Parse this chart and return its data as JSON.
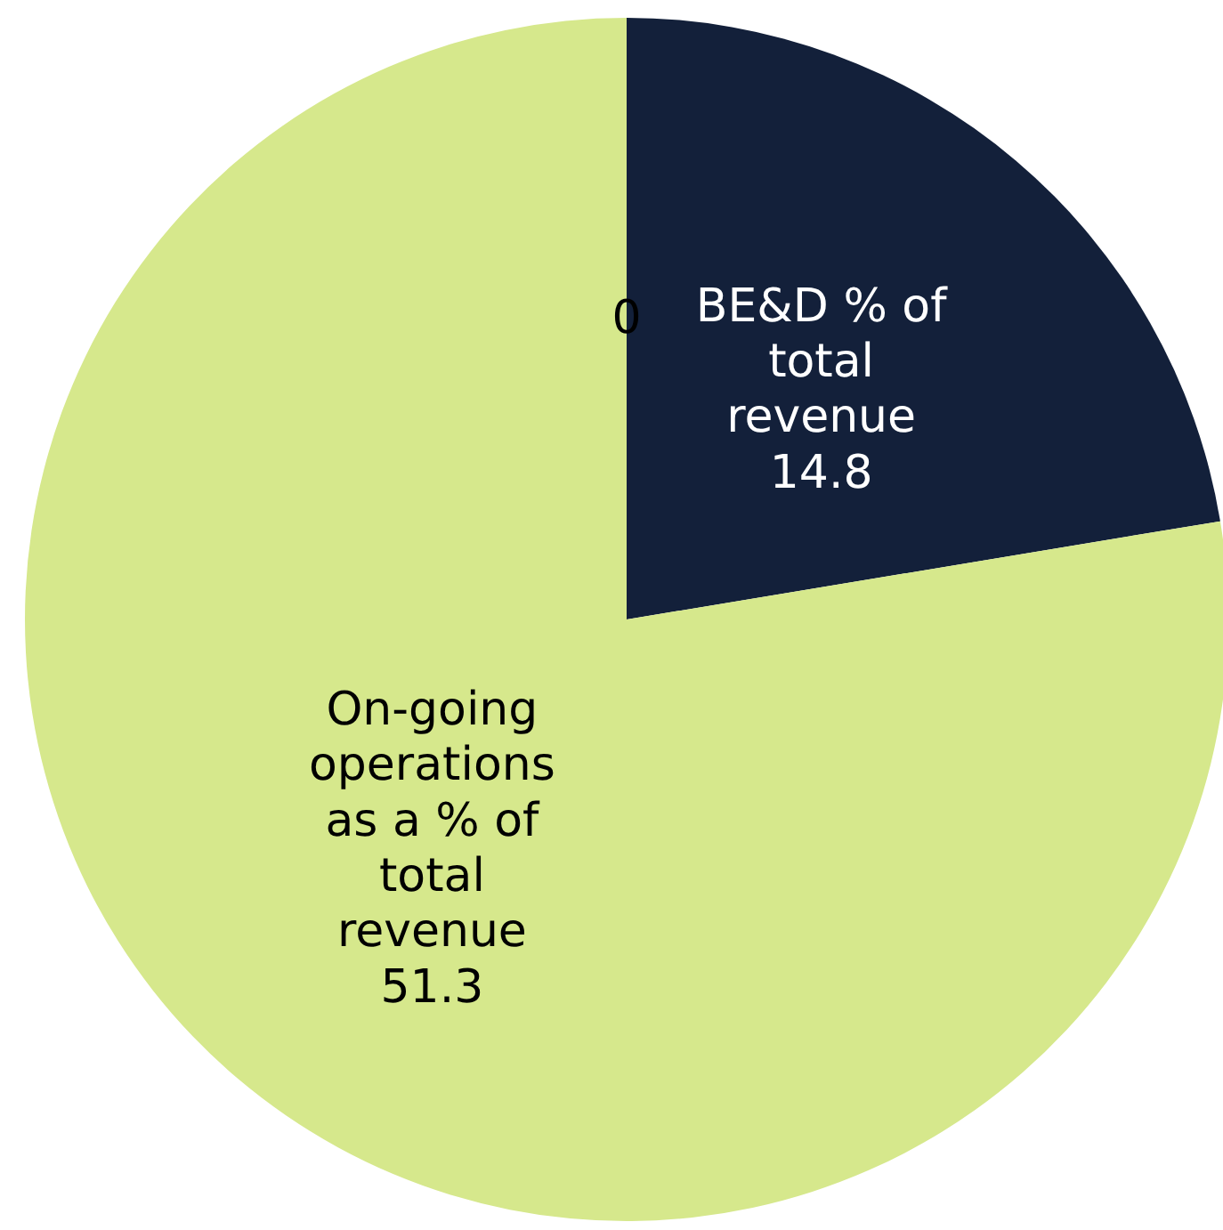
{
  "chart_data": {
    "type": "pie",
    "categories": [
      null,
      "BE&D % of total revenue",
      "On-going operations as a % of total revenue"
    ],
    "values": [
      0,
      14.8,
      51.3
    ],
    "value_labels": [
      "0",
      "14.8",
      "51.3"
    ],
    "colors": [
      "#4f81bd",
      "#13203a",
      "#d6e88c"
    ]
  }
}
